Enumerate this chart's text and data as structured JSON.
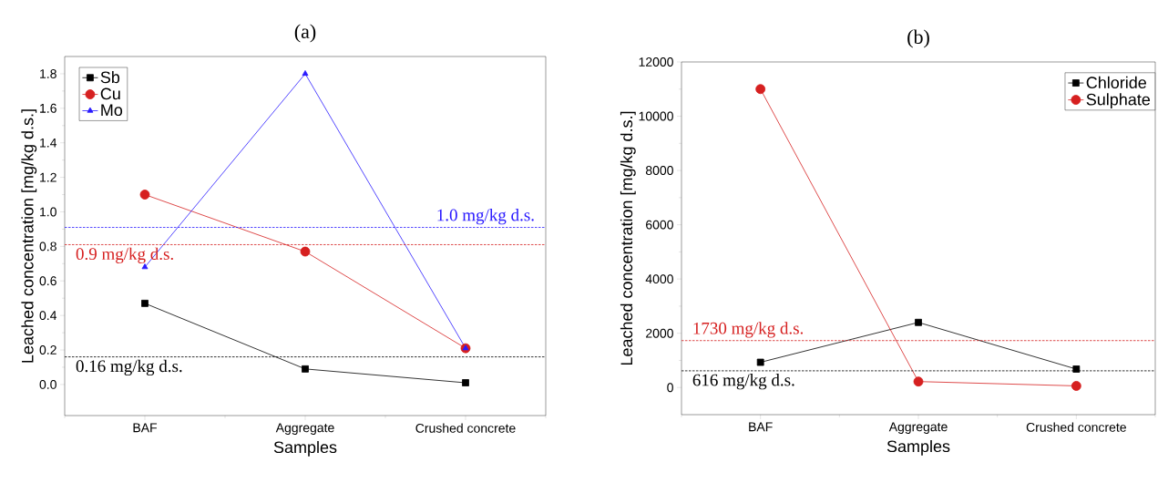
{
  "chart_data": [
    {
      "type": "line",
      "title": "(a)",
      "xlabel": "Samples",
      "ylabel": "Leached concentration [mg/kg d.s.]",
      "categories": [
        "BAF",
        "Aggregate",
        "Crushed concrete"
      ],
      "series": [
        {
          "name": "Sb",
          "color": "#000000",
          "marker": "square",
          "values": [
            0.47,
            0.09,
            0.01
          ]
        },
        {
          "name": "Cu",
          "color": "#d62020",
          "marker": "circle",
          "values": [
            1.1,
            0.77,
            0.21
          ]
        },
        {
          "name": "Mo",
          "color": "#2a1aff",
          "marker": "triangle",
          "values": [
            0.68,
            1.8,
            0.21
          ]
        }
      ],
      "ylim": [
        -0.18,
        1.9
      ],
      "yticks": [
        {
          "value": 0,
          "label": "0.0"
        },
        {
          "value": 0.2,
          "label": "0.2"
        },
        {
          "value": 0.4,
          "label": "0.4"
        },
        {
          "value": 0.6,
          "label": "0.6"
        },
        {
          "value": 0.8,
          "label": "0.8"
        },
        {
          "value": 1.0,
          "label": "1.0"
        },
        {
          "value": 1.2,
          "label": "1.2"
        },
        {
          "value": 1.4,
          "label": "1.4"
        },
        {
          "value": 1.6,
          "label": "1.6"
        },
        {
          "value": 1.8,
          "label": "1.8"
        }
      ],
      "ref_lines": [
        {
          "axis": "y",
          "value": 0.91,
          "label": "1.0 mg/kg d.s.",
          "color": "#2a1aff",
          "line_style": "dashed"
        },
        {
          "axis": "y",
          "value": 0.81,
          "label": "0.9 mg/kg d.s.",
          "color": "#d62020",
          "line_style": "dashed"
        },
        {
          "axis": "y",
          "value": 0.16,
          "label": "0.16 mg/kg d.s.",
          "color": "#000000",
          "line_style": "dashed"
        }
      ],
      "legend": "top left",
      "line_style": "solid"
    },
    {
      "type": "line",
      "title": "(b)",
      "xlabel": "Samples",
      "ylabel": "Leached concentration [mg/kg d.s.]",
      "categories": [
        "BAF",
        "Aggregate",
        "Crushed concrete"
      ],
      "series": [
        {
          "name": "Chloride",
          "color": "#000000",
          "marker": "square",
          "values": [
            930,
            2400,
            680
          ]
        },
        {
          "name": "Sulphate",
          "color": "#d62020",
          "marker": "circle",
          "values": [
            11000,
            220,
            60
          ]
        }
      ],
      "ylim": [
        -1000,
        12000
      ],
      "yticks": [
        0,
        2000,
        4000,
        6000,
        8000,
        10000,
        12000
      ],
      "ref_lines": [
        {
          "axis": "y",
          "value": 1730,
          "label": "1730 mg/kg d.s.",
          "color": "#d62020",
          "line_style": "dashed"
        },
        {
          "axis": "y",
          "value": 616,
          "label": "616 mg/kg d.s.",
          "color": "#000000",
          "line_style": "dashed"
        }
      ],
      "legend": "top right",
      "line_style": "solid"
    }
  ]
}
